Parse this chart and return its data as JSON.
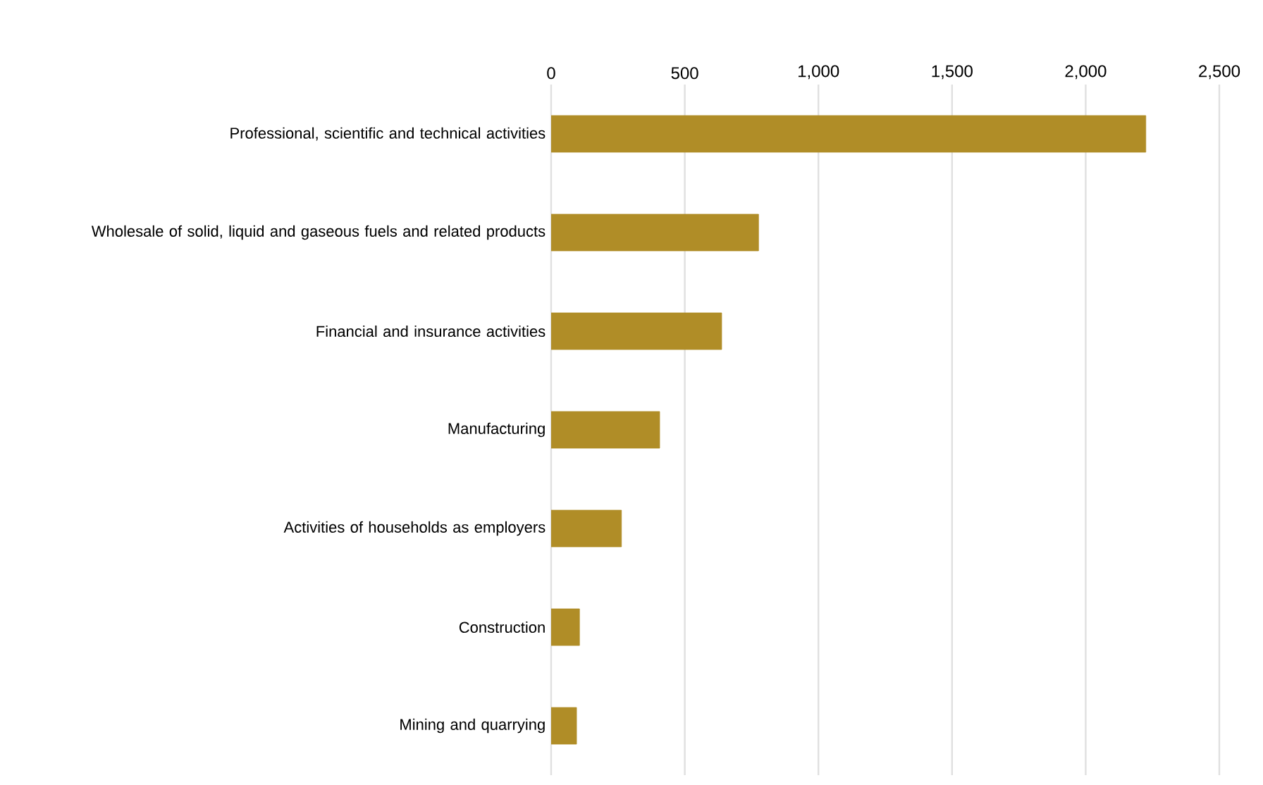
{
  "chart_data": {
    "type": "bar",
    "orientation": "horizontal",
    "categories": [
      "Professional, scientific and technical activities",
      "Wholesale of solid, liquid and gaseous fuels and related products",
      "Financial and insurance activities",
      "Manufacturing",
      "Activities of households as employers",
      "Construction",
      "Mining and quarrying"
    ],
    "values": [
      2225,
      776,
      638,
      406,
      263,
      106,
      95
    ],
    "color": "#b08d27",
    "xlim": [
      0,
      2500
    ],
    "xticks": [
      0,
      500,
      {
        "value": 1000,
        "label": "1,000"
      },
      {
        "value": 1500,
        "label": "1,500"
      },
      {
        "value": 2000,
        "label": "2,000"
      },
      {
        "value": 2500,
        "label": "2,500"
      }
    ],
    "grid": "x"
  }
}
